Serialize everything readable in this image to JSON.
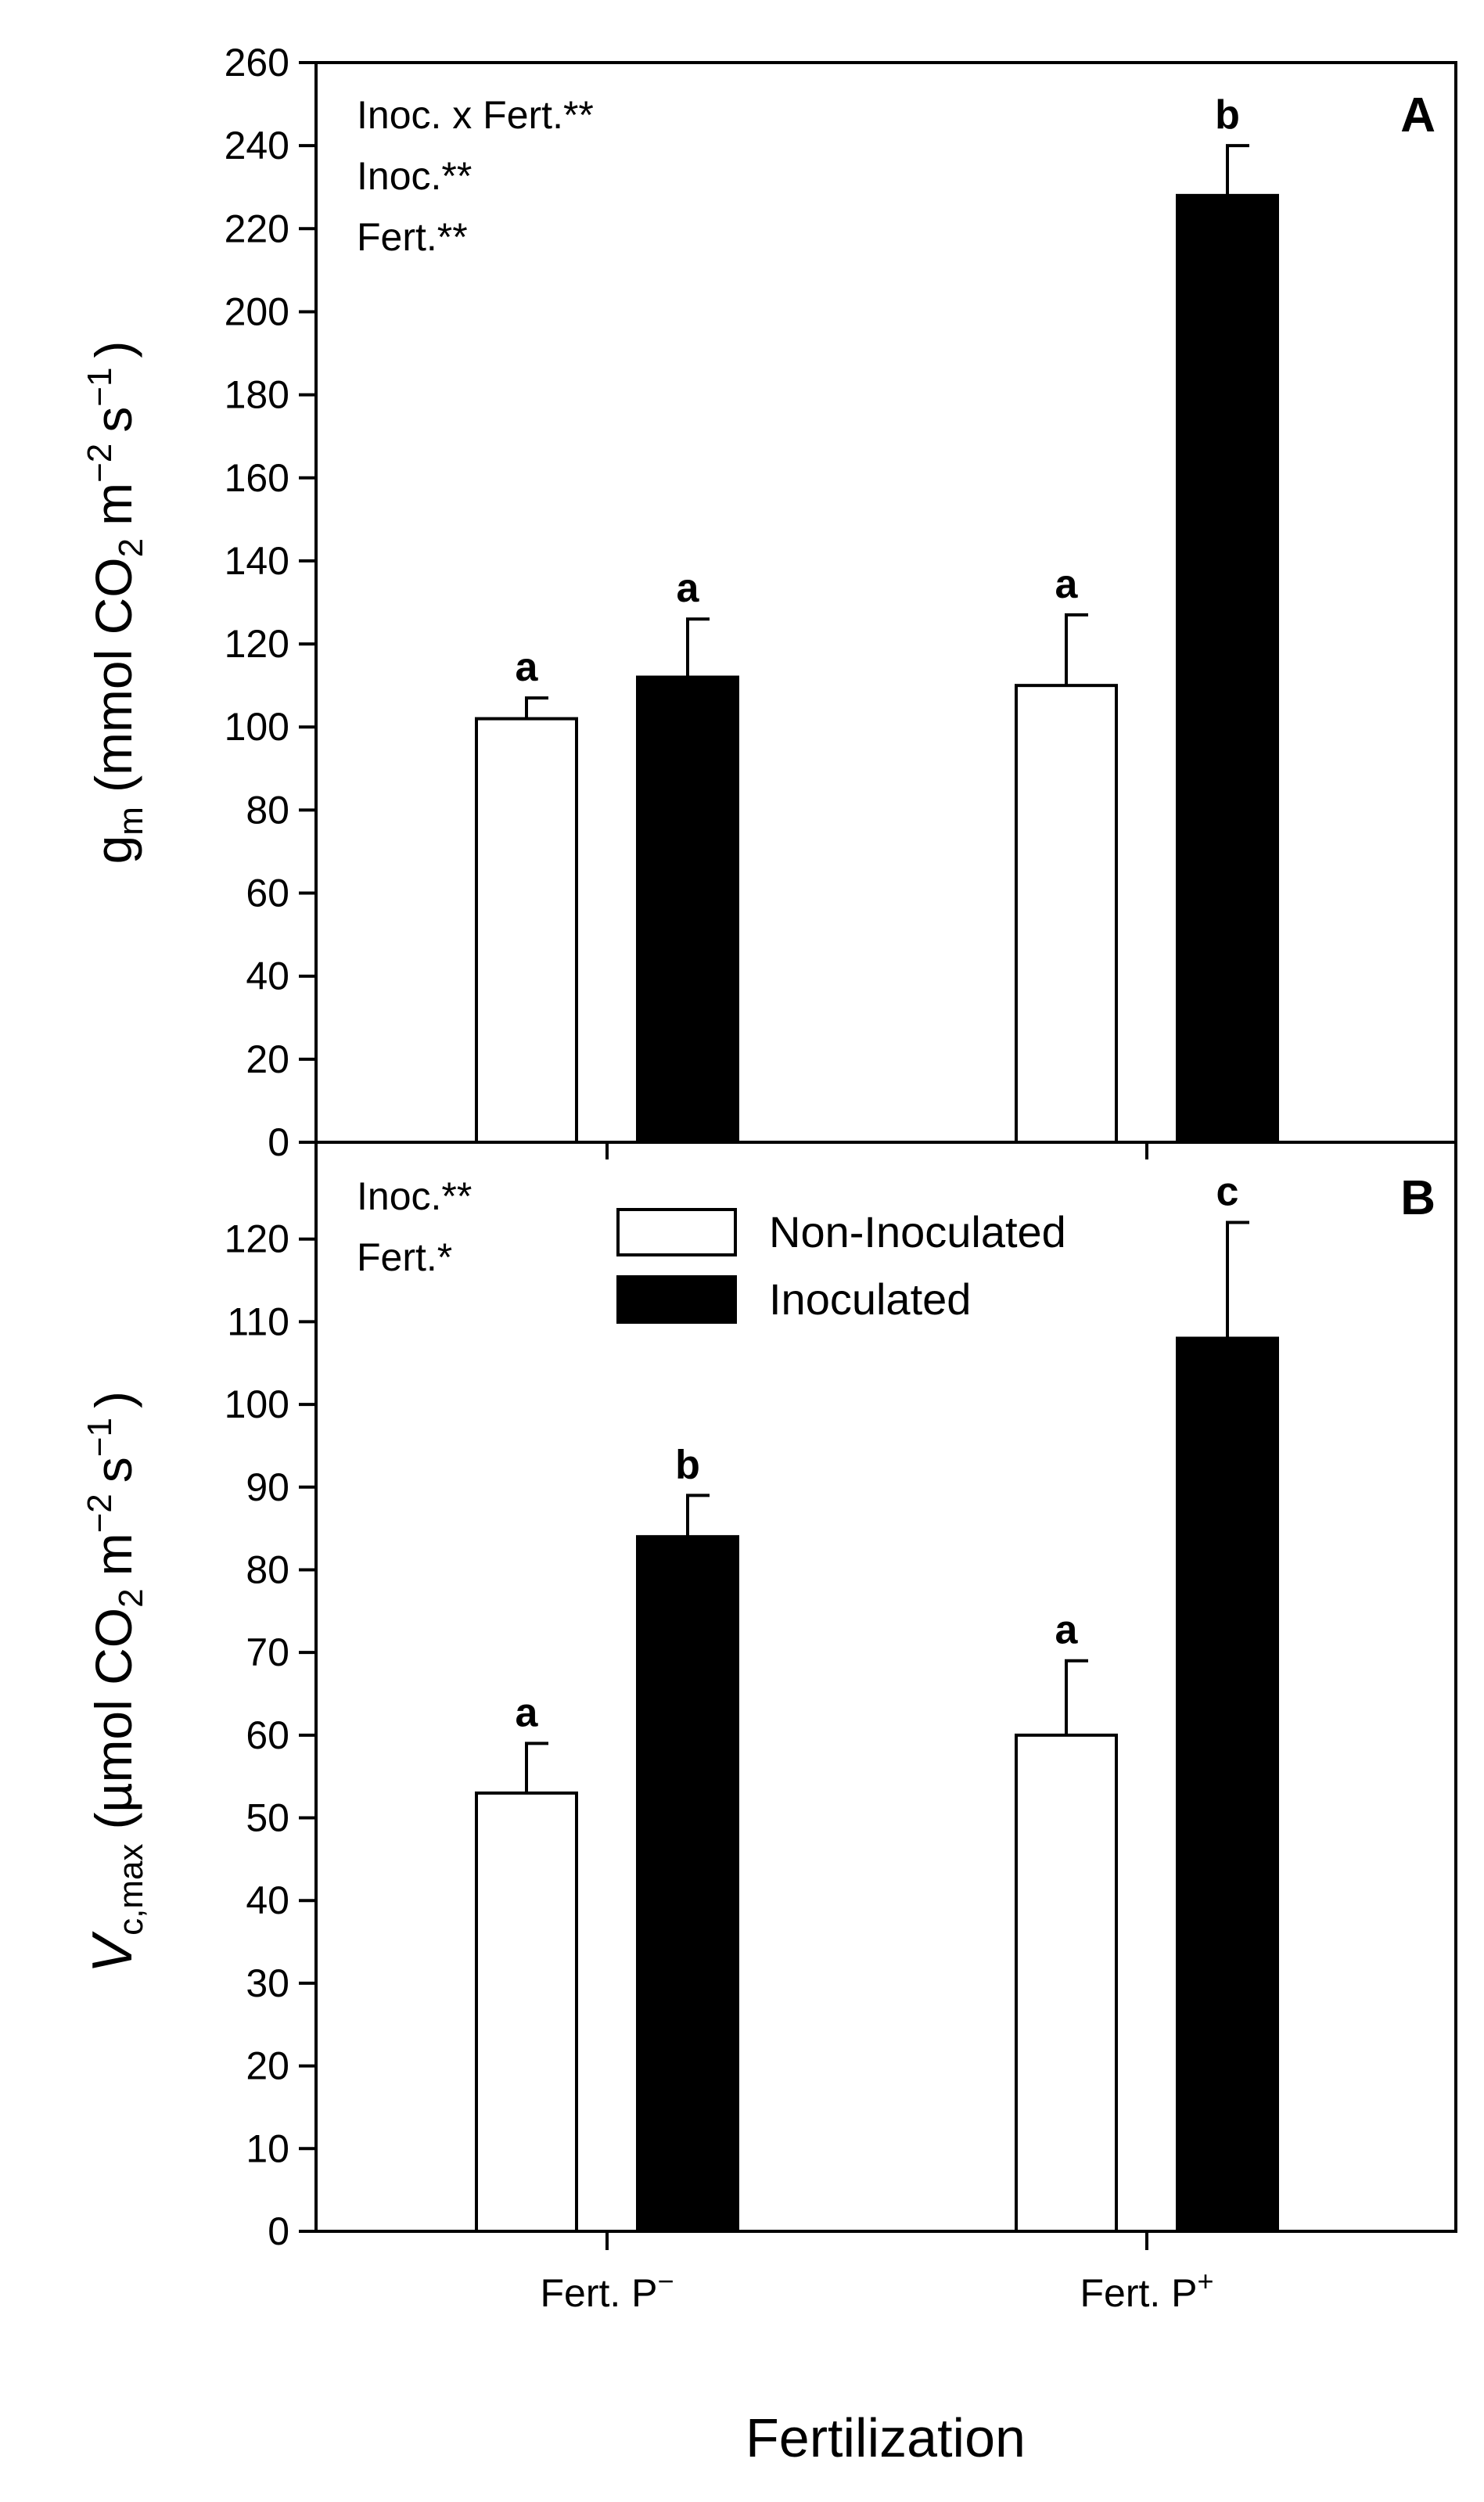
{
  "chart_data": [
    {
      "type": "bar",
      "panel": "A",
      "categories": [
        "Fert. P−",
        "Fert. P+"
      ],
      "series": [
        {
          "name": "Non-Inoculated",
          "color": "#ffffff",
          "values": [
            102,
            110
          ],
          "errors": [
            5,
            17
          ],
          "letters": [
            "a",
            "a"
          ]
        },
        {
          "name": "Inoculated",
          "color": "#000000",
          "values": [
            112,
            228
          ],
          "errors": [
            14,
            12
          ],
          "letters": [
            "a",
            "b"
          ]
        }
      ],
      "ylabel_main": "g",
      "ylabel_sub": "m",
      "ylabel_rest": "(mmol CO",
      "ylabel_co2_sub": "2",
      "ylabel_unit": "m",
      "ylabel_exp1": "−2",
      "ylabel_s": "s",
      "ylabel_exp2": "−1",
      "ylabel_close": ")",
      "ylim": [
        0,
        260
      ],
      "yticks": [
        0,
        20,
        40,
        60,
        80,
        100,
        120,
        140,
        160,
        180,
        200,
        220,
        240,
        260
      ],
      "stats": [
        "Inoc. x Fert.**",
        "Inoc.**",
        "Fert.**"
      ],
      "panel_letter": "A"
    },
    {
      "type": "bar",
      "panel": "B",
      "categories": [
        "Fert. P−",
        "Fert. P+"
      ],
      "series": [
        {
          "name": "Non-Inoculated",
          "color": "#ffffff",
          "values": [
            53,
            60
          ],
          "errors": [
            6,
            9
          ],
          "letters": [
            "a",
            "a"
          ]
        },
        {
          "name": "Inoculated",
          "color": "#000000",
          "values": [
            84,
            108
          ],
          "errors": [
            5,
            14
          ],
          "letters": [
            "b",
            "c"
          ]
        }
      ],
      "ylabel_main": "V",
      "ylabel_sub": "c,max",
      "ylabel_rest": "(µmol CO",
      "ylabel_co2_sub": "2",
      "ylabel_unit": "m",
      "ylabel_exp1": "−2",
      "ylabel_s": "s",
      "ylabel_exp2": "−1",
      "ylabel_close": ")",
      "ylim": [
        0,
        130
      ],
      "yticks": [
        0,
        10,
        20,
        30,
        40,
        50,
        60,
        70,
        80,
        90,
        100,
        110,
        120
      ],
      "stats": [
        "Inoc.**",
        "Fert.*"
      ],
      "panel_letter": "B",
      "legend": [
        "Non-Inoculated",
        "Inoculated"
      ]
    }
  ],
  "xaxis": {
    "title": "Fertilization",
    "categories": [
      {
        "base": "Fert. P",
        "sup": "−"
      },
      {
        "base": "Fert. P",
        "sup": "+"
      }
    ]
  }
}
